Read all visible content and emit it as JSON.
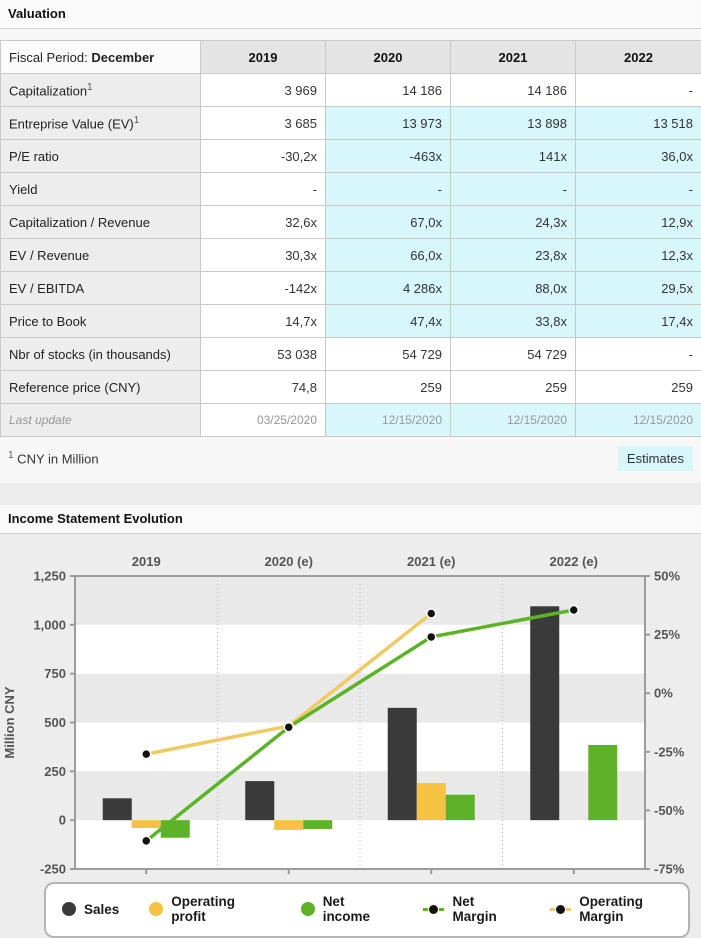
{
  "sections": {
    "valuation_title": "Valuation",
    "income_title": "Income Statement Evolution"
  },
  "table": {
    "header": {
      "label_prefix": "Fiscal Period: ",
      "label_bold": "December",
      "years": [
        "2019",
        "2020",
        "2021",
        "2022"
      ]
    },
    "rows": [
      {
        "label": "Capitalization",
        "sup": "1",
        "values": [
          "3 969",
          "14 186",
          "14 186",
          "-"
        ],
        "est": [
          false,
          false,
          false,
          false
        ]
      },
      {
        "label": "Entreprise Value (EV)",
        "sup": "1",
        "values": [
          "3 685",
          "13 973",
          "13 898",
          "13 518"
        ],
        "est": [
          false,
          true,
          true,
          true
        ]
      },
      {
        "label": "P/E ratio",
        "values": [
          "-30,2x",
          "-463x",
          "141x",
          "36,0x"
        ],
        "est": [
          false,
          true,
          true,
          true
        ]
      },
      {
        "label": "Yield",
        "values": [
          "-",
          "-",
          "-",
          "-"
        ],
        "est": [
          false,
          true,
          true,
          true
        ]
      },
      {
        "label": "Capitalization / Revenue",
        "values": [
          "32,6x",
          "67,0x",
          "24,3x",
          "12,9x"
        ],
        "est": [
          false,
          true,
          true,
          true
        ]
      },
      {
        "label": "EV / Revenue",
        "values": [
          "30,3x",
          "66,0x",
          "23,8x",
          "12,3x"
        ],
        "est": [
          false,
          true,
          true,
          true
        ]
      },
      {
        "label": "EV / EBITDA",
        "values": [
          "-142x",
          "4 286x",
          "88,0x",
          "29,5x"
        ],
        "est": [
          false,
          true,
          true,
          true
        ]
      },
      {
        "label": "Price to Book",
        "values": [
          "14,7x",
          "47,4x",
          "33,8x",
          "17,4x"
        ],
        "est": [
          false,
          true,
          true,
          true
        ]
      },
      {
        "label": "Nbr of stocks (in thousands)",
        "values": [
          "53 038",
          "54 729",
          "54 729",
          "-"
        ],
        "est": [
          false,
          false,
          false,
          false
        ]
      },
      {
        "label": "Reference price (CNY)",
        "values": [
          "74,8",
          "259",
          "259",
          "259"
        ],
        "est": [
          false,
          false,
          false,
          false
        ]
      },
      {
        "label": "Last update",
        "values": [
          "03/25/2020",
          "12/15/2020",
          "12/15/2020",
          "12/15/2020"
        ],
        "est": [
          false,
          true,
          true,
          true
        ],
        "muted": true,
        "italic": true
      }
    ]
  },
  "footnote": {
    "sup": "1",
    "text": " CNY in Million"
  },
  "estimates_label": "Estimates",
  "colors": {
    "estimate_cell": "#d8f7fb",
    "sales": "#3a3a3a",
    "operating_profit": "#f6c242",
    "net_income": "#5db327",
    "operating_margin_line": "#efca63",
    "net_margin_line": "#5db327",
    "band_gray": "#e9e9e9",
    "axis": "#9c9c9c",
    "tick_text": "#555555"
  },
  "chart_data": {
    "type": "bar",
    "title": "Income Statement Evolution",
    "categories": [
      "2019",
      "2020 (e)",
      "2021 (e)",
      "2022 (e)"
    ],
    "left_axis": {
      "label": "Million CNY",
      "min": -250,
      "max": 1250,
      "ticks": [
        {
          "v": 1250,
          "label": "1,250"
        },
        {
          "v": 1000,
          "label": "1,000"
        },
        {
          "v": 750,
          "label": "750"
        },
        {
          "v": 500,
          "label": "500"
        },
        {
          "v": 250,
          "label": "250"
        },
        {
          "v": 0,
          "label": "0"
        },
        {
          "v": -250,
          "label": "-250"
        }
      ]
    },
    "right_axis": {
      "min": -75,
      "max": 50,
      "ticks": [
        {
          "v": 50,
          "label": "50%"
        },
        {
          "v": 25,
          "label": "25%"
        },
        {
          "v": 0,
          "label": "0%"
        },
        {
          "v": -25,
          "label": "-25%"
        },
        {
          "v": -50,
          "label": "-50%"
        },
        {
          "v": -75,
          "label": "-75%"
        }
      ]
    },
    "bar_series": [
      {
        "name": "Sales",
        "color": "#3a3a3a",
        "axis": "left",
        "values": [
          112,
          200,
          575,
          1095
        ]
      },
      {
        "name": "Operating profit",
        "color": "#f6c242",
        "axis": "left",
        "values": [
          -40,
          -50,
          190,
          null
        ]
      },
      {
        "name": "Net income",
        "color": "#5db327",
        "axis": "left",
        "values": [
          -90,
          -45,
          130,
          385
        ]
      }
    ],
    "line_series": [
      {
        "name": "Operating Margin",
        "color": "#efca63",
        "axis": "right",
        "values": [
          -26,
          -14,
          34,
          null
        ]
      },
      {
        "name": "Net Margin",
        "color": "#5db327",
        "axis": "right",
        "values": [
          -63,
          -14.5,
          24,
          35.5
        ]
      }
    ],
    "legend": [
      {
        "label": "Sales",
        "marker": "dot",
        "color": "#3a3a3a"
      },
      {
        "label": "Operating profit",
        "marker": "dot",
        "color": "#f6c242"
      },
      {
        "label": "Net income",
        "marker": "dot",
        "color": "#5db327"
      },
      {
        "label": "Net Margin",
        "marker": "line-dot",
        "color": "#5db327"
      },
      {
        "label": "Operating Margin",
        "marker": "line-dot",
        "color": "#efca63"
      }
    ],
    "legend_position": "bottom",
    "grid": "alternating horizontal bands every 250, dotted vertical category separators"
  }
}
